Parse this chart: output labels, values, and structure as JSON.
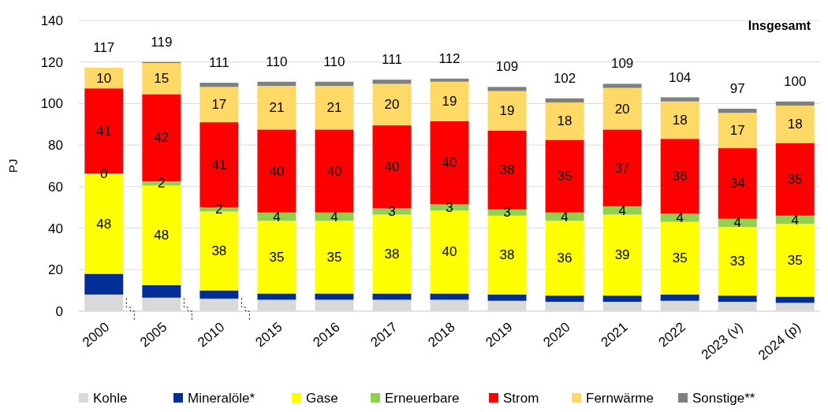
{
  "chart_data": {
    "type": "bar",
    "stacked": true,
    "ylabel": "PJ",
    "annotations": [
      "Insgesamt"
    ],
    "categories": [
      "2000",
      "2005",
      "2010",
      "2015",
      "2016",
      "2017",
      "2018",
      "2019",
      "2020",
      "2021",
      "2022",
      "2023 (v)",
      "2024 (p)"
    ],
    "ylim": [
      0,
      140
    ],
    "yticks": [
      0,
      20,
      40,
      60,
      80,
      100,
      120,
      140
    ],
    "grid": "y",
    "legend": "bottom",
    "totals": [
      "117",
      "119",
      "111",
      "110",
      "110",
      "111",
      "112",
      "109",
      "102",
      "109",
      "104",
      "97",
      "100"
    ],
    "series": [
      {
        "name": "Kohle",
        "color": "#d9d9d9",
        "values": [
          8,
          6.5,
          6,
          5.5,
          5.5,
          5.5,
          5.5,
          5,
          4.5,
          4.5,
          5,
          4.5,
          4
        ]
      },
      {
        "name": "Mineralöle*",
        "color": "#002e96",
        "values": [
          10,
          6,
          4,
          3,
          3,
          3,
          3,
          3,
          3,
          3,
          3,
          3,
          3
        ]
      },
      {
        "name": "Gase",
        "color": "#ffff00",
        "values": [
          48,
          48,
          38,
          35,
          35,
          38,
          40,
          38,
          36,
          39,
          35,
          33,
          35
        ],
        "value_labels": [
          "48",
          "48",
          "38",
          "35",
          "35",
          "38",
          "40",
          "38",
          "36",
          "39",
          "35",
          "33",
          "35"
        ]
      },
      {
        "name": "Erneuerbare",
        "color": "#92d050",
        "values": [
          0.3,
          2,
          2,
          4,
          4,
          3,
          3,
          3,
          4,
          4,
          4,
          4,
          4
        ],
        "value_labels": [
          "0",
          "2",
          "2",
          "4",
          "4",
          "3",
          "3",
          "3",
          "4",
          "4",
          "4",
          "4",
          "4"
        ]
      },
      {
        "name": "Strom",
        "color": "#ff0000",
        "values": [
          41,
          42,
          41,
          40,
          40,
          40,
          40,
          38,
          35,
          37,
          36,
          34,
          35
        ],
        "value_labels": [
          "41",
          "42",
          "41",
          "40",
          "40",
          "40",
          "40",
          "38",
          "35",
          "37",
          "36",
          "34",
          "35"
        ]
      },
      {
        "name": "Fernwärme",
        "color": "#ffd966",
        "values": [
          10,
          15,
          17,
          21,
          21,
          20,
          19,
          19,
          18,
          20,
          18,
          17,
          18
        ],
        "value_labels": [
          "10",
          "15",
          "17",
          "21",
          "21",
          "20",
          "19",
          "19",
          "18",
          "20",
          "18",
          "17",
          "18"
        ]
      },
      {
        "name": "Sonstige**",
        "color": "#808080",
        "values": [
          0,
          0.5,
          2,
          2,
          2,
          2,
          1.5,
          2,
          2,
          2,
          2,
          2,
          2
        ]
      }
    ]
  }
}
